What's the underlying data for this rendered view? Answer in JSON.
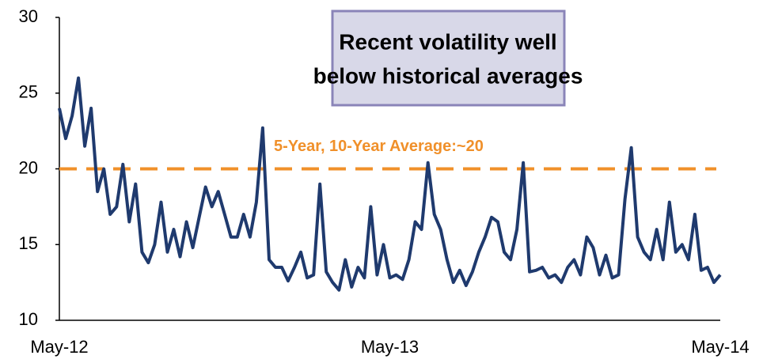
{
  "chart_data": {
    "type": "line",
    "categories": [
      "May-12",
      null,
      null,
      null,
      null,
      null,
      null,
      null,
      null,
      null,
      null,
      null,
      null,
      null,
      null,
      null,
      null,
      null,
      null,
      null,
      null,
      null,
      null,
      null,
      null,
      null,
      null,
      null,
      null,
      null,
      null,
      null,
      null,
      null,
      null,
      null,
      null,
      null,
      null,
      null,
      null,
      null,
      null,
      null,
      null,
      null,
      null,
      null,
      null,
      null,
      null,
      null,
      "May-13",
      null,
      null,
      null,
      null,
      null,
      null,
      null,
      null,
      null,
      null,
      null,
      null,
      null,
      null,
      null,
      null,
      null,
      null,
      null,
      null,
      null,
      null,
      null,
      null,
      null,
      null,
      null,
      null,
      null,
      null,
      null,
      null,
      null,
      null,
      null,
      null,
      null,
      null,
      null,
      null,
      null,
      null,
      null,
      null,
      null,
      null,
      null,
      null,
      null,
      null,
      null,
      "May-14"
    ],
    "series": [
      {
        "color": "#1f3a6e",
        "values": [
          24,
          22,
          23.5,
          26,
          21.5,
          24,
          18.5,
          20,
          17,
          17.5,
          20.3,
          16.5,
          19,
          14.5,
          13.8,
          15,
          17.8,
          14.5,
          16,
          14.2,
          16.5,
          14.8,
          16.8,
          18.8,
          17.5,
          18.5,
          17,
          15.5,
          15.5,
          17,
          15.5,
          17.8,
          22.7,
          14,
          13.5,
          13.5,
          12.6,
          13.5,
          14.5,
          12.8,
          13,
          19,
          13.2,
          12.5,
          12,
          14,
          12.2,
          13.5,
          12.8,
          17.5,
          13,
          15,
          12.8,
          13,
          12.7,
          14,
          16.5,
          16,
          20.4,
          17,
          16,
          14,
          12.5,
          13.3,
          12.3,
          13.2,
          14.5,
          15.5,
          16.8,
          16.5,
          14.5,
          14,
          16,
          20.4,
          13.2,
          13.3,
          13.5,
          12.8,
          13,
          12.5,
          13.5,
          14,
          13,
          15.5,
          14.8,
          13,
          14.3,
          12.8,
          13,
          18,
          21.4,
          15.5,
          14.5,
          14,
          16,
          14,
          17.8,
          14.5,
          15,
          14,
          17,
          13.3,
          13.5,
          12.5,
          13
        ]
      }
    ],
    "ylim": [
      10,
      30
    ],
    "yticks": [
      10,
      15,
      20,
      25,
      30
    ],
    "reference_line": {
      "value": 20,
      "label": "5-Year, 10-Year Average:~20",
      "color": "#f0902a"
    },
    "annotation": {
      "lines": [
        "Recent volatility well",
        "below historical averages"
      ]
    },
    "grid": false
  }
}
